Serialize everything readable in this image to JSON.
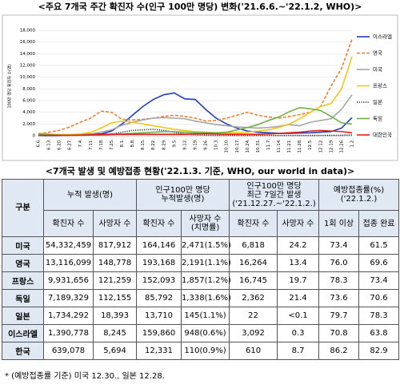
{
  "chart_data": {
    "type": "line",
    "title": "<주요 7개국 주간 확진자 수(인구 100만 명당) 변화('21.6.6.~'22.1.2, WHO)>",
    "y_label": "100만 명당 확진자 수(명)",
    "categories": [
      "6.6.",
      "6.13.",
      "6.20.",
      "6.27.",
      "7.4.",
      "7.11.",
      "7.18.",
      "7.25.",
      "8.1.",
      "8.8.",
      "8.15.",
      "8.22.",
      "8.29.",
      "9.5.",
      "9.12.",
      "9.19.",
      "9.26.",
      "10.3.",
      "10.10.",
      "10.17.",
      "10.24.",
      "10.31.",
      "11.7.",
      "11.14.",
      "11.21.",
      "11.28.",
      "12.5.",
      "12.12.",
      "12.19.",
      "12.26.",
      "1.2."
    ],
    "series": [
      {
        "name": "이스라엘",
        "color": "#1f3fbf",
        "line_style": "solid",
        "values": [
          20,
          10,
          30,
          100,
          200,
          300,
          300,
          800,
          2000,
          3500,
          5000,
          6200,
          7000,
          7300,
          6300,
          6200,
          4500,
          3000,
          2000,
          1300,
          800,
          600,
          500,
          400,
          400,
          450,
          500,
          600,
          700,
          1300,
          3100
        ]
      },
      {
        "name": "영국",
        "color": "#f07f2e",
        "line_style": "dashed",
        "values": [
          300,
          600,
          900,
          1500,
          2300,
          3000,
          4200,
          4000,
          2800,
          2700,
          2800,
          3000,
          3300,
          3500,
          3300,
          3000,
          2500,
          2600,
          3000,
          3500,
          4000,
          3500,
          3200,
          3000,
          3300,
          3600,
          4000,
          5000,
          8500,
          11500,
          16500
        ]
      },
      {
        "name": "미국",
        "color": "#a6a6a6",
        "line_style": "solid",
        "values": [
          300,
          250,
          200,
          200,
          200,
          300,
          600,
          1000,
          1800,
          2300,
          2700,
          3000,
          3100,
          3000,
          2900,
          2500,
          2200,
          1900,
          1700,
          1500,
          1400,
          1300,
          1400,
          1600,
          1900,
          1700,
          2300,
          2600,
          2900,
          4500,
          7000
        ]
      },
      {
        "name": "프랑스",
        "color": "#f5c518",
        "line_style": "solid",
        "values": [
          400,
          300,
          200,
          200,
          300,
          600,
          1300,
          2200,
          2500,
          2300,
          2000,
          1700,
          1400,
          1100,
          900,
          700,
          600,
          500,
          500,
          500,
          600,
          800,
          1000,
          1400,
          2000,
          2900,
          4000,
          5000,
          5500,
          8000,
          13500
        ]
      },
      {
        "name": "일본",
        "color": "#333333",
        "line_style": "dotted",
        "values": [
          150,
          150,
          100,
          100,
          120,
          200,
          250,
          300,
          600,
          900,
          1000,
          1100,
          900,
          600,
          300,
          200,
          100,
          60,
          50,
          50,
          40,
          40,
          40,
          40,
          40,
          40,
          40,
          50,
          60,
          80,
          150
        ]
      },
      {
        "name": "독일",
        "color": "#70ad47",
        "line_style": "solid",
        "values": [
          300,
          200,
          100,
          80,
          80,
          100,
          100,
          200,
          300,
          400,
          500,
          600,
          700,
          700,
          600,
          500,
          500,
          500,
          600,
          1000,
          1400,
          1900,
          2600,
          3200,
          4100,
          4800,
          4600,
          4300,
          3300,
          2200,
          2000
        ]
      },
      {
        "name": "대한민국",
        "color": "#e0201b",
        "line_style": "solid",
        "values": [
          60,
          60,
          60,
          60,
          100,
          150,
          200,
          250,
          250,
          250,
          250,
          250,
          250,
          250,
          250,
          300,
          350,
          300,
          250,
          250,
          250,
          250,
          300,
          400,
          500,
          600,
          800,
          900,
          800,
          700,
          500
        ]
      }
    ],
    "ylim": [
      0,
      18000
    ],
    "yticks": [
      0,
      {
        "value": 2000,
        "label": "2,000"
      },
      {
        "value": 4000,
        "label": "4,000"
      },
      {
        "value": 6000,
        "label": "6,000"
      },
      {
        "value": 8000,
        "label": "8,000"
      },
      {
        "value": 10000,
        "label": "10,000"
      },
      {
        "value": 12000,
        "label": "12,000"
      },
      {
        "value": 14000,
        "label": "14,000"
      },
      {
        "value": 16000,
        "label": "16,000"
      },
      {
        "value": 18000,
        "label": "18,000"
      }
    ],
    "grid": true,
    "legend": "right"
  },
  "table": {
    "title": "<7개국 발생 및 예방접종 현황('22.1.3. 기준, WHO, our world in data)>",
    "header_row1": [
      "구분",
      "누적 발생(명)",
      "인구100만 명당\n누적발생(명)",
      "인구100만 명당\n최근 7일간 발생\n('21.12.27.~'22.1.2.)",
      "예방접종률(%)\n('22.1.2.)"
    ],
    "header_row2": [
      "확진자 수",
      "사망자 수",
      "확진자 수",
      "사망자 수\n(치명률)",
      "확진자 수",
      "사망자 수",
      "1회 이상",
      "접종 완료"
    ],
    "rows": [
      [
        "미국",
        "54,332,459",
        "817,912",
        "164,146",
        "2,471(1.5%)",
        "6,818",
        "24.2",
        "73.4",
        "61.5"
      ],
      [
        "영국",
        "13,116,099",
        "148,778",
        "193,168",
        "2,191(1.1%)",
        "16,264",
        "13.4",
        "76.0",
        "69.6"
      ],
      [
        "프랑스",
        "9,931,656",
        "121,259",
        "152,093",
        "1,857(1.2%)",
        "16,745",
        "19.7",
        "78.3",
        "73.4"
      ],
      [
        "독일",
        "7,189,329",
        "112,155",
        "85,792",
        "1,338(1.6%)",
        "2,362",
        "21.4",
        "73.6",
        "70.6"
      ],
      [
        "일본",
        "1,734,292",
        "18,393",
        "13,710",
        "145(1.1%)",
        "22",
        "<0.1",
        "79.7",
        "78.3"
      ],
      [
        "이스라엘",
        "1,390,778",
        "8,245",
        "159,860",
        "948(0.6%)",
        "3,092",
        "0.3",
        "70.8",
        "63.8"
      ],
      [
        "한국",
        "639,078",
        "5,694",
        "12,331",
        "110(0.9%)",
        "610",
        "8.7",
        "86.2",
        "82.9"
      ]
    ]
  },
  "footnote": "* (예방접종률 기준) 미국 12.30., 일본 12.28."
}
